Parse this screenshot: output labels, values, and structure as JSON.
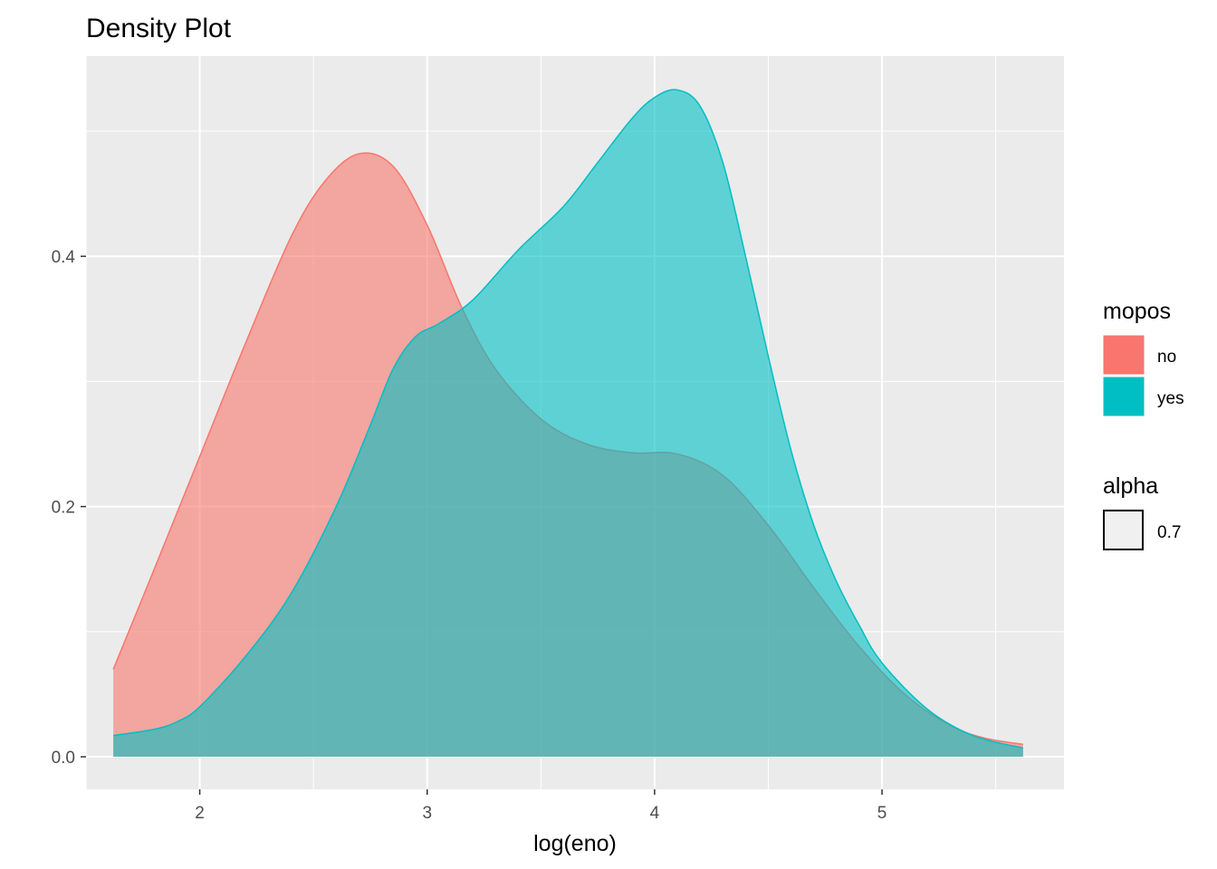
{
  "chart_data": {
    "type": "area",
    "title": "Density Plot",
    "xlabel": "log(eno)",
    "ylabel": "",
    "xlim": [
      1.5,
      5.8
    ],
    "ylim": [
      -0.026,
      0.56
    ],
    "x_ticks": [
      2,
      3,
      4,
      5
    ],
    "x_tick_labels": [
      "2",
      "3",
      "4",
      "5"
    ],
    "y_ticks": [
      0.0,
      0.2,
      0.4
    ],
    "y_tick_labels": [
      "0.0",
      "0.2",
      "0.4"
    ],
    "grid": true,
    "legend_position": "right",
    "legends": [
      {
        "title": "mopos",
        "entries": [
          {
            "label": "no",
            "color": "#F8766D"
          },
          {
            "label": "yes",
            "color": "#00BFC4"
          }
        ]
      },
      {
        "title": "alpha",
        "entries": [
          {
            "label": "0.7",
            "color": "#F0F0F0"
          }
        ]
      }
    ],
    "series": [
      {
        "name": "no",
        "color": "#F8766D",
        "x": [
          1.62,
          1.8,
          2.0,
          2.2,
          2.4,
          2.55,
          2.7,
          2.85,
          3.0,
          3.15,
          3.3,
          3.5,
          3.7,
          3.9,
          4.1,
          4.3,
          4.5,
          4.7,
          4.9,
          5.1,
          5.3,
          5.45,
          5.62
        ],
        "y": [
          0.07,
          0.15,
          0.24,
          0.33,
          0.415,
          0.46,
          0.482,
          0.472,
          0.425,
          0.36,
          0.31,
          0.27,
          0.25,
          0.243,
          0.242,
          0.225,
          0.185,
          0.135,
          0.088,
          0.05,
          0.025,
          0.015,
          0.01
        ]
      },
      {
        "name": "yes",
        "color": "#00BFC4",
        "x": [
          1.62,
          1.8,
          1.9,
          2.0,
          2.2,
          2.4,
          2.6,
          2.75,
          2.85,
          2.95,
          3.05,
          3.2,
          3.4,
          3.6,
          3.75,
          3.9,
          4.0,
          4.1,
          4.2,
          4.3,
          4.4,
          4.5,
          4.6,
          4.7,
          4.8,
          4.9,
          5.0,
          5.2,
          5.4,
          5.62
        ],
        "y": [
          0.017,
          0.022,
          0.028,
          0.04,
          0.08,
          0.13,
          0.2,
          0.265,
          0.31,
          0.336,
          0.346,
          0.365,
          0.405,
          0.44,
          0.475,
          0.51,
          0.527,
          0.533,
          0.52,
          0.475,
          0.4,
          0.32,
          0.245,
          0.185,
          0.14,
          0.105,
          0.075,
          0.038,
          0.017,
          0.007
        ]
      }
    ]
  }
}
